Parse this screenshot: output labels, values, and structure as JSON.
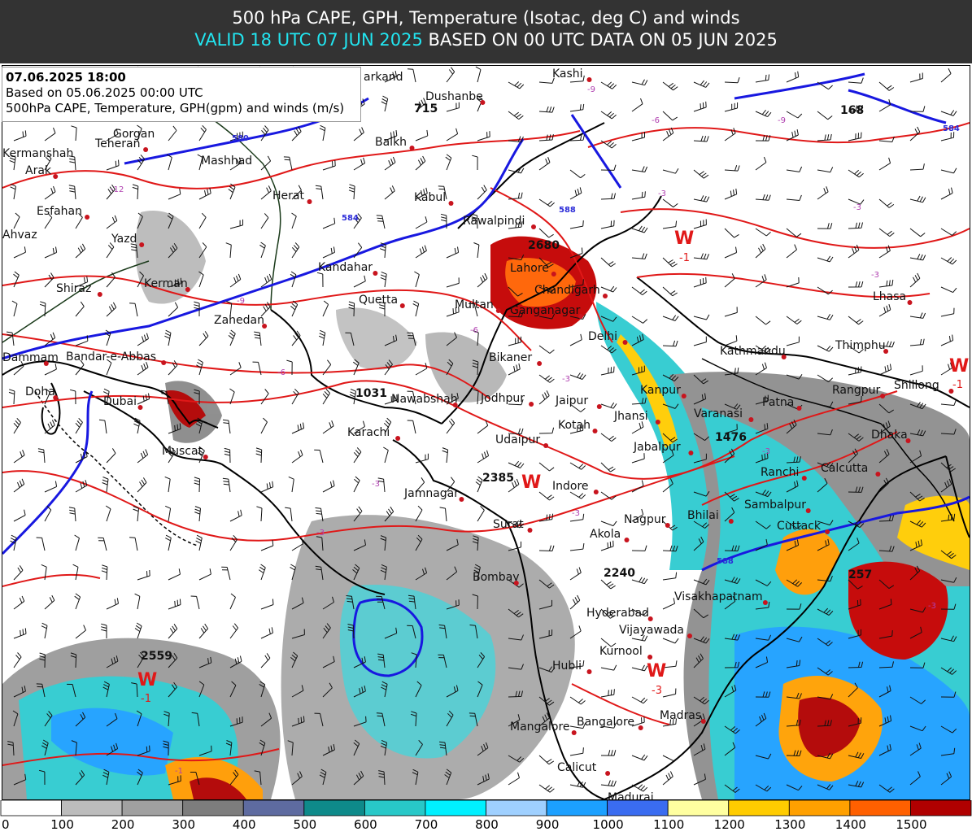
{
  "header": {
    "title": "500 hPa CAPE, GPH, Temperature (Isotac, deg C) and winds",
    "valid": "VALID 18 UTC 07 JUN 2025",
    "based": "BASED ON 00 UTC DATA ON 05 JUN 2025"
  },
  "info": {
    "datetime": "07.06.2025 18:00",
    "based_on": "Based on 05.06.2025 00:00 UTC",
    "description": "500hPa CAPE, Temperature, GPH(gpm) and winds (m/s)"
  },
  "cities": [
    {
      "name": "Teheran",
      "dot": true
    },
    {
      "name": "Gorgan",
      "dot": false
    },
    {
      "name": "Kermanshah",
      "dot": false
    },
    {
      "name": "Arak",
      "dot": true
    },
    {
      "name": "Mashhad",
      "dot": false
    },
    {
      "name": "Esfahan",
      "dot": true
    },
    {
      "name": "Ahvaz",
      "dot": false
    },
    {
      "name": "Yazd",
      "dot": true
    },
    {
      "name": "Herat",
      "dot": true
    },
    {
      "name": "Balkh",
      "dot": true
    },
    {
      "name": "Kabul",
      "dot": true
    },
    {
      "name": "Rawalpindi",
      "dot": true
    },
    {
      "name": "Kandahar",
      "dot": true
    },
    {
      "name": "Quetta",
      "dot": true
    },
    {
      "name": "Shiraz",
      "dot": true
    },
    {
      "name": "Kerman",
      "dot": true
    },
    {
      "name": "Zahedan",
      "dot": true
    },
    {
      "name": "Multan",
      "dot": true
    },
    {
      "name": "Lahore",
      "dot": true
    },
    {
      "name": "Chandigarh",
      "dot": true
    },
    {
      "name": "Ganganagar",
      "dot": true
    },
    {
      "name": "Dammam",
      "dot": true
    },
    {
      "name": "Bandar-e-Abbas",
      "dot": true
    },
    {
      "name": "Doha",
      "dot": true
    },
    {
      "name": "Dubai",
      "dot": true
    },
    {
      "name": "Muscat",
      "dot": true
    },
    {
      "name": "Nawabshah",
      "dot": true
    },
    {
      "name": "Karachi",
      "dot": true
    },
    {
      "name": "Bikaner",
      "dot": true
    },
    {
      "name": "Delhi",
      "dot": true
    },
    {
      "name": "Jodhpur",
      "dot": true
    },
    {
      "name": "Jaipur",
      "dot": true
    },
    {
      "name": "Kotah",
      "dot": true
    },
    {
      "name": "Udaipur",
      "dot": true
    },
    {
      "name": "Jhansi",
      "dot": true
    },
    {
      "name": "Kanpur",
      "dot": true
    },
    {
      "name": "Varanasi",
      "dot": true
    },
    {
      "name": "Patna",
      "dot": true
    },
    {
      "name": "Kathmandu",
      "dot": true
    },
    {
      "name": "Thimphu",
      "dot": true
    },
    {
      "name": "Lhasa",
      "dot": true
    },
    {
      "name": "Shillong",
      "dot": true
    },
    {
      "name": "Rangpur",
      "dot": true
    },
    {
      "name": "Dhaka",
      "dot": true
    },
    {
      "name": "Calcutta",
      "dot": true
    },
    {
      "name": "Ranchi",
      "dot": true
    },
    {
      "name": "Jabalpur",
      "dot": true
    },
    {
      "name": "Indore",
      "dot": true
    },
    {
      "name": "Jamnagar",
      "dot": true
    },
    {
      "name": "Surat",
      "dot": true
    },
    {
      "name": "Sambalpur",
      "dot": true
    },
    {
      "name": "Cuttack",
      "dot": true
    },
    {
      "name": "Nagpur",
      "dot": true
    },
    {
      "name": "Bhilai",
      "dot": true
    },
    {
      "name": "Akola",
      "dot": true
    },
    {
      "name": "Bombay",
      "dot": true
    },
    {
      "name": "Visakhapatnam",
      "dot": true
    },
    {
      "name": "Hyderabad",
      "dot": true
    },
    {
      "name": "Vijayawada",
      "dot": true
    },
    {
      "name": "Kurnool",
      "dot": true
    },
    {
      "name": "Hubli",
      "dot": true
    },
    {
      "name": "Madras",
      "dot": true
    },
    {
      "name": "Mangalore",
      "dot": true
    },
    {
      "name": "Bangalore",
      "dot": true
    },
    {
      "name": "Calicut",
      "dot": true
    },
    {
      "name": "Madurai",
      "dot": true
    },
    {
      "name": "Dushanbe",
      "dot": true
    },
    {
      "name": "Kashi",
      "dot": true
    },
    {
      "name": "arkand",
      "dot": false
    }
  ],
  "gph_values": [
    "715",
    "168",
    "2680",
    "1031",
    "1476",
    "2385",
    "2240",
    "2559",
    "257"
  ],
  "gph_contours": [
    "580",
    "584",
    "588"
  ],
  "temp_labels": [
    "-12",
    "-9",
    "-9",
    "-6",
    "-6",
    "-3",
    "-3",
    "-3",
    "-3",
    "-3",
    "-3",
    "-3",
    "-1",
    "-9",
    "-6",
    "-3",
    "-3"
  ],
  "warm_centers": [
    {
      "letter": "W",
      "value": "-1"
    },
    {
      "letter": "W",
      "value": ""
    },
    {
      "letter": "W",
      "value": "-3"
    },
    {
      "letter": "W",
      "value": "-1"
    },
    {
      "letter": "W",
      "value": "-1"
    }
  ],
  "legend": {
    "colors": [
      "#ffffff",
      "#bcbcbc",
      "#a0a0a0",
      "#7d7d7d",
      "#5e6ba0",
      "#0e8a8a",
      "#28c8c8",
      "#00f0ff",
      "#9fd0ff",
      "#1ca0ff",
      "#3a6cf0",
      "#ffffa0",
      "#ffcc00",
      "#ffa000",
      "#ff6000",
      "#b00000"
    ],
    "labels": [
      "0",
      "100",
      "200",
      "300",
      "400",
      "500",
      "600",
      "700",
      "800",
      "900",
      "1000",
      "1100",
      "1200",
      "1300",
      "1400",
      "1500"
    ]
  }
}
